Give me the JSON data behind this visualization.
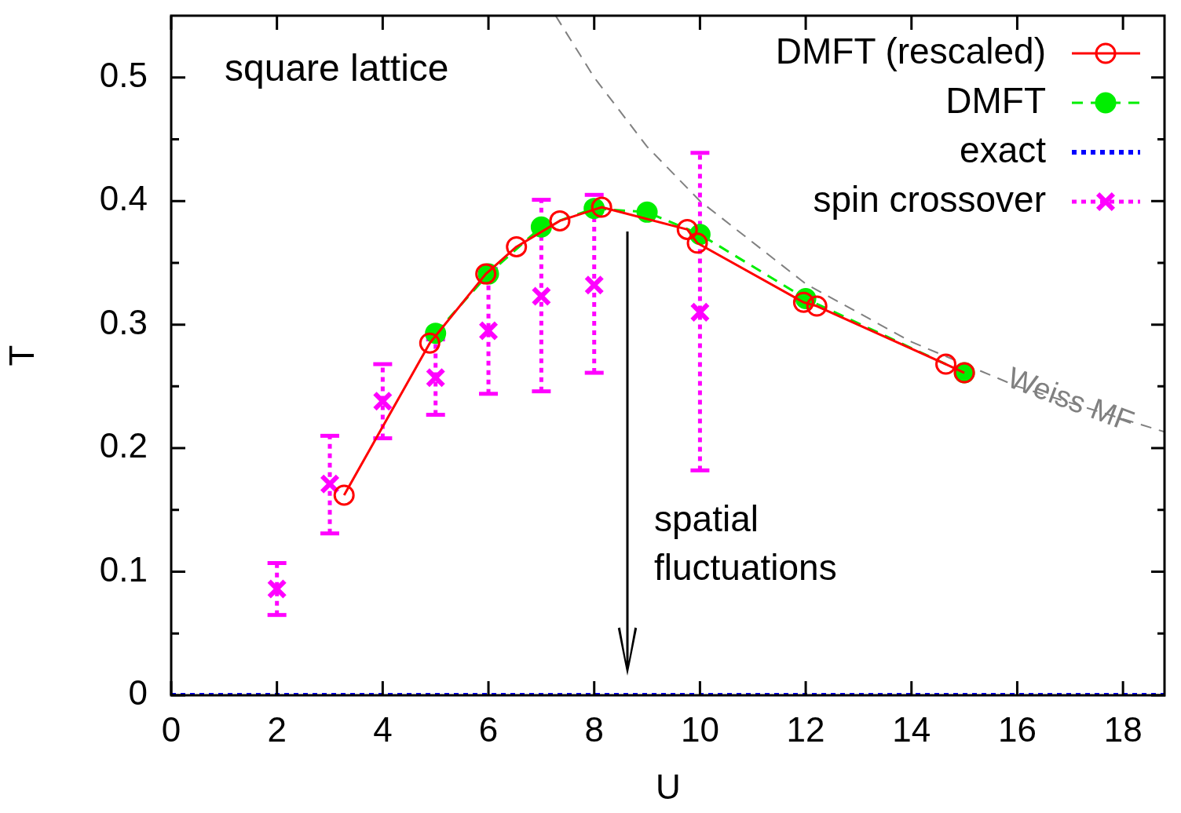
{
  "chart_data": {
    "type": "line",
    "xlabel": "U",
    "ylabel": "T",
    "xlim": [
      0,
      18.8
    ],
    "ylim": [
      0,
      0.55
    ],
    "xticks": [
      0,
      2,
      4,
      6,
      8,
      10,
      12,
      14,
      16,
      18
    ],
    "yticks": [
      0,
      {
        "value": 0.05,
        "label": null
      },
      0.1,
      {
        "value": 0.15,
        "label": null
      },
      0.2,
      {
        "value": 0.25,
        "label": null
      },
      0.3,
      {
        "value": 0.35,
        "label": null
      },
      0.4,
      {
        "value": 0.45,
        "label": null
      },
      0.5
    ],
    "grid": false,
    "legend": "top right",
    "series": [
      {
        "name": "DMFT (rescaled)",
        "color": "#ff0000",
        "marker": "circle",
        "line_style": "solid",
        "x": [
          3.27,
          4.89,
          5.95,
          6.53,
          7.35,
          8.14,
          9.76,
          9.95,
          11.96,
          12.21,
          14.65,
          15.0
        ],
        "values": [
          0.162,
          0.285,
          0.341,
          0.363,
          0.384,
          0.395,
          0.377,
          0.366,
          0.318,
          0.315,
          0.268,
          0.261
        ]
      },
      {
        "name": "DMFT",
        "color": "#00ee00",
        "marker": "circle",
        "line_style": "dashed",
        "x": [
          5,
          6,
          7,
          8,
          9,
          10,
          12,
          15
        ],
        "values": [
          0.293,
          0.341,
          0.379,
          0.394,
          0.391,
          0.373,
          0.321,
          0.261
        ]
      },
      {
        "name": "exact",
        "color": "#0000ff",
        "marker": "none",
        "line_style": "dotted",
        "x": [
          0,
          18.8
        ],
        "values": [
          0,
          0
        ]
      },
      {
        "name": "spin crossover",
        "type": "scatter",
        "color": "#ff00ff",
        "marker": "cross",
        "x": [
          2,
          3,
          4,
          5,
          6,
          7,
          8,
          10
        ],
        "values": [
          0.086,
          0.171,
          0.238,
          0.257,
          0.295,
          0.323,
          0.332,
          0.31
        ],
        "errors": [
          [
            0.065,
            0.107
          ],
          [
            0.131,
            0.21
          ],
          [
            0.208,
            0.268
          ],
          [
            0.227,
            0.288
          ],
          [
            0.244,
            0.345
          ],
          [
            0.246,
            0.401
          ],
          [
            0.261,
            0.405
          ],
          [
            0.182,
            0.439
          ]
        ]
      },
      {
        "color": "#808080",
        "marker": "none",
        "line_style": "dashed",
        "x": [
          7.27,
          8,
          9,
          10,
          12,
          14,
          16,
          18.8
        ],
        "values": [
          0.55,
          0.5,
          0.444,
          0.4,
          0.333,
          0.286,
          0.25,
          0.213
        ]
      }
    ],
    "annotations": [
      "square lattice",
      "spatial fluctuations",
      {
        "text": "Weiss MF",
        "x": 17,
        "y": 0.238
      }
    ]
  }
}
